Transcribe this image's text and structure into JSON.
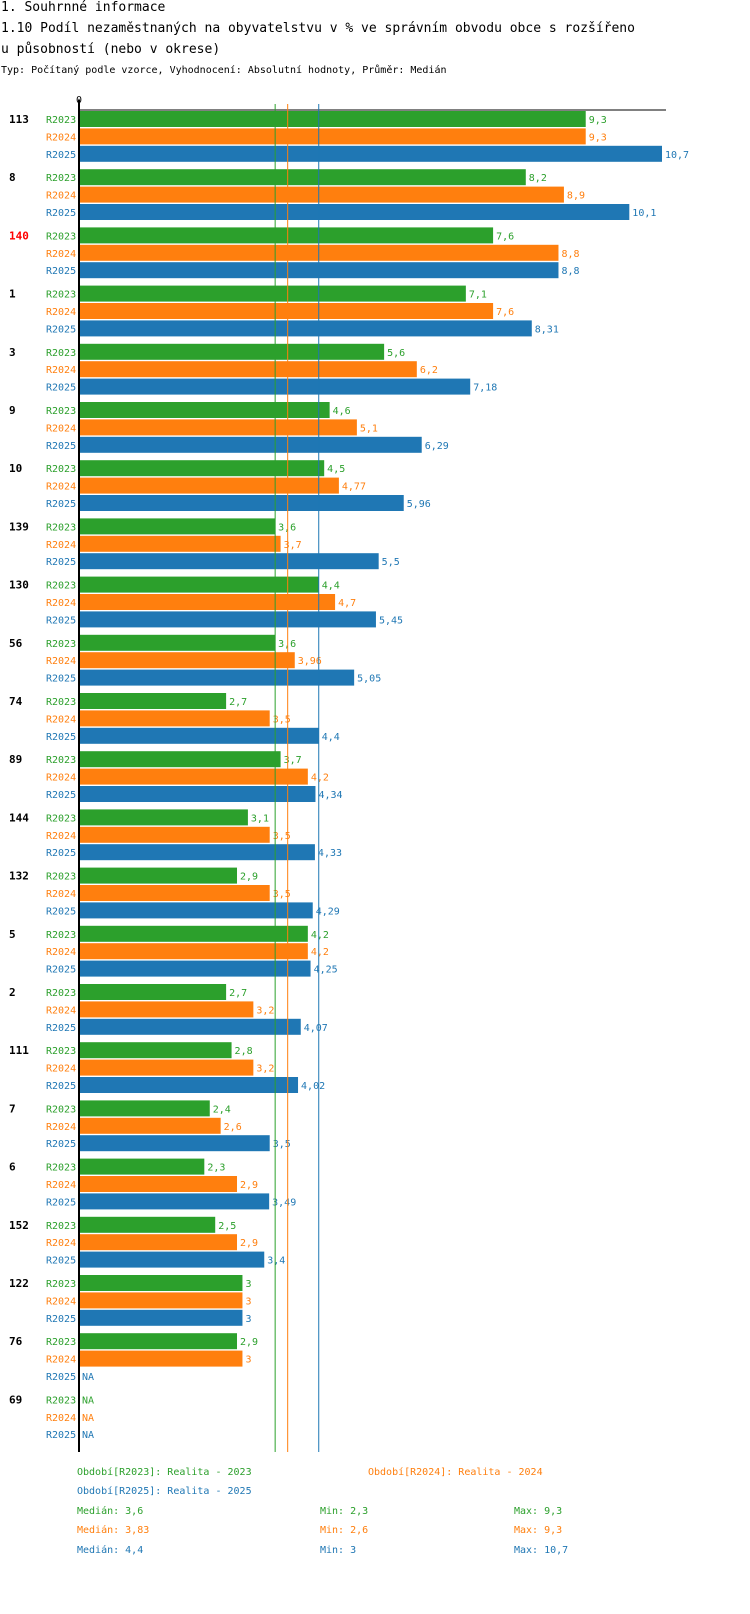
{
  "header": {
    "section_title": "1. Souhrnné informace",
    "chart_title_line1": "1.10 Podíl nezaměstnaných na obyvatelstvu v % ve správním obvodu obce s rozšířeno",
    "chart_title_line2": "u působností (nebo v okrese)",
    "subtitle": "Typ: Počítaný podle vzorce, Vyhodnocení: Absolutní hodnoty, Průměr: Medián"
  },
  "colors": {
    "R2023": "#2ca02c",
    "R2024": "#ff7f0e",
    "R2025": "#1f77b4",
    "highlight": "#ff0000"
  },
  "chart_data": {
    "type": "bar",
    "orientation": "horizontal",
    "title": "1.10 Podíl nezaměstnaných na obyvatelstvu v % ve správním obvodu obce s rozšířenou působností (nebo v okrese)",
    "xlim": [
      0,
      10.7
    ],
    "x_tick_labels": [
      "0"
    ],
    "series_names": [
      "R2023",
      "R2024",
      "R2025"
    ],
    "highlighted_category": "140",
    "categories": [
      "113",
      "8",
      "140",
      "1",
      "3",
      "9",
      "10",
      "139",
      "130",
      "56",
      "74",
      "89",
      "144",
      "132",
      "5",
      "2",
      "111",
      "7",
      "6",
      "152",
      "122",
      "76",
      "69"
    ],
    "series": [
      {
        "name": "R2023",
        "values": [
          9.3,
          8.2,
          7.6,
          7.1,
          5.6,
          4.6,
          4.5,
          3.6,
          4.4,
          3.6,
          2.7,
          3.7,
          3.1,
          2.9,
          4.2,
          2.7,
          2.8,
          2.4,
          2.3,
          2.5,
          3,
          2.9,
          null
        ],
        "labels": [
          "9,3",
          "8,2",
          "7,6",
          "7,1",
          "5,6",
          "4,6",
          "4,5",
          "3,6",
          "4,4",
          "3,6",
          "2,7",
          "3,7",
          "3,1",
          "2,9",
          "4,2",
          "2,7",
          "2,8",
          "2,4",
          "2,3",
          "2,5",
          "3",
          "2,9",
          "NA"
        ]
      },
      {
        "name": "R2024",
        "values": [
          9.3,
          8.9,
          8.8,
          7.6,
          6.2,
          5.1,
          4.77,
          3.7,
          4.7,
          3.96,
          3.5,
          4.2,
          3.5,
          3.5,
          4.2,
          3.2,
          3.2,
          2.6,
          2.9,
          2.9,
          3,
          3,
          null
        ],
        "labels": [
          "9,3",
          "8,9",
          "8,8",
          "7,6",
          "6,2",
          "5,1",
          "4,77",
          "3,7",
          "4,7",
          "3,96",
          "3,5",
          "4,2",
          "3,5",
          "3,5",
          "4,2",
          "3,2",
          "3,2",
          "2,6",
          "2,9",
          "2,9",
          "3",
          "3",
          "NA"
        ]
      },
      {
        "name": "R2025",
        "values": [
          10.7,
          10.1,
          8.8,
          8.31,
          7.18,
          6.29,
          5.96,
          5.5,
          5.45,
          5.05,
          4.4,
          4.34,
          4.33,
          4.29,
          4.25,
          4.07,
          4.02,
          3.5,
          3.49,
          3.4,
          3,
          null,
          null
        ],
        "labels": [
          "10,7",
          "10,1",
          "8,8",
          "8,31",
          "7,18",
          "6,29",
          "5,96",
          "5,5",
          "5,45",
          "5,05",
          "4,4",
          "4,34",
          "4,33",
          "4,29",
          "4,25",
          "4,07",
          "4,02",
          "3,5",
          "3,49",
          "3,4",
          "3",
          "NA",
          "NA"
        ]
      }
    ],
    "median_lines": [
      {
        "series": "R2023",
        "value": 3.6
      },
      {
        "series": "R2024",
        "value": 3.83
      },
      {
        "series": "R2025",
        "value": 4.4
      }
    ]
  },
  "footer": {
    "legend_r2023": "Období[R2023]: Realita - 2023",
    "legend_r2024": "Období[R2024]: Realita - 2024",
    "legend_r2025": "Období[R2025]: Realita - 2025",
    "stats": [
      {
        "series": "R2023",
        "median": "Medián: 3,6",
        "min": "Min: 2,3",
        "max": "Max: 9,3"
      },
      {
        "series": "R2024",
        "median": "Medián: 3,83",
        "min": "Min: 2,6",
        "max": "Max: 9,3"
      },
      {
        "series": "R2025",
        "median": "Medián: 4,4",
        "min": "Min: 3",
        "max": "Max: 10,7"
      }
    ]
  }
}
